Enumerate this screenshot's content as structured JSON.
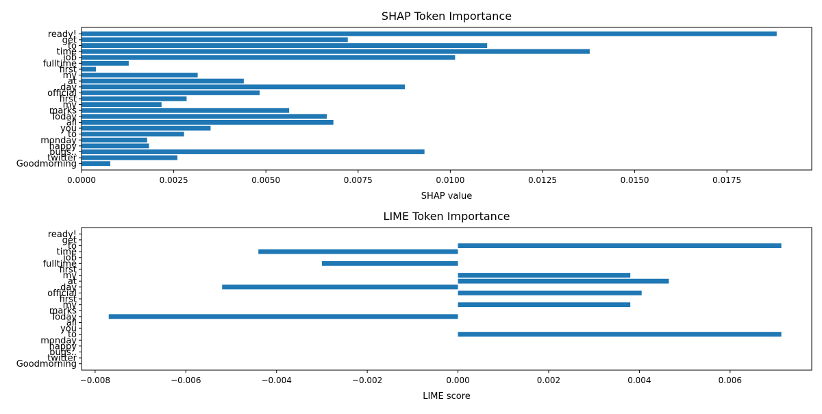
{
  "bar_color": "#1f77b4",
  "chart_data": [
    {
      "type": "bar",
      "orientation": "horizontal",
      "title": "SHAP Token Importance",
      "xlabel": "SHAP value",
      "ylabel": "",
      "xlim": [
        0,
        0.0198
      ],
      "grid": false,
      "categories": [
        "Goodmorning",
        "twitter",
        "bugs..",
        "happy",
        "monday",
        "to",
        "you",
        "all",
        "Today",
        "marks",
        "my",
        "first",
        "official",
        "day",
        "at",
        "my",
        "first",
        "fulltime",
        "job",
        "time",
        "to",
        "get",
        "ready!"
      ],
      "values": [
        0.00078,
        0.0026,
        0.0093,
        0.00183,
        0.00178,
        0.00278,
        0.0035,
        0.00683,
        0.00665,
        0.00563,
        0.00217,
        0.00285,
        0.00483,
        0.00877,
        0.0044,
        0.00315,
        0.00039,
        0.00128,
        0.01013,
        0.01378,
        0.011,
        0.00722,
        0.01885
      ],
      "xticks": [
        "0.0000",
        "0.0025",
        "0.0050",
        "0.0075",
        "0.0100",
        "0.0125",
        "0.0150",
        "0.0175"
      ],
      "xtick_values": [
        0,
        0.0025,
        0.005,
        0.0075,
        0.01,
        0.0125,
        0.015,
        0.0175
      ]
    },
    {
      "type": "bar",
      "orientation": "horizontal",
      "title": "LIME Token Importance",
      "xlabel": "LIME score",
      "ylabel": "",
      "xlim": [
        -0.0083,
        0.0078
      ],
      "grid": false,
      "categories": [
        "Goodmorning",
        "twitter",
        "bugs..",
        "happy",
        "monday",
        "to",
        "you",
        "all",
        "Today",
        "marks",
        "my",
        "first",
        "official",
        "day",
        "at",
        "my",
        "first",
        "fulltime",
        "job",
        "time",
        "to",
        "get",
        "ready!"
      ],
      "values": [
        0,
        0,
        0,
        0,
        0,
        0.00713,
        0,
        0,
        -0.0077,
        0,
        0.0038,
        0,
        0.00405,
        -0.0052,
        0.00465,
        0.0038,
        0,
        -0.003,
        0,
        -0.0044,
        0.00713,
        0,
        0
      ],
      "xticks": [
        "−0.008",
        "−0.006",
        "−0.004",
        "−0.002",
        "0.000",
        "0.002",
        "0.004",
        "0.006"
      ],
      "xtick_values": [
        -0.008,
        -0.006,
        -0.004,
        -0.002,
        0,
        0.002,
        0.004,
        0.006
      ]
    }
  ]
}
